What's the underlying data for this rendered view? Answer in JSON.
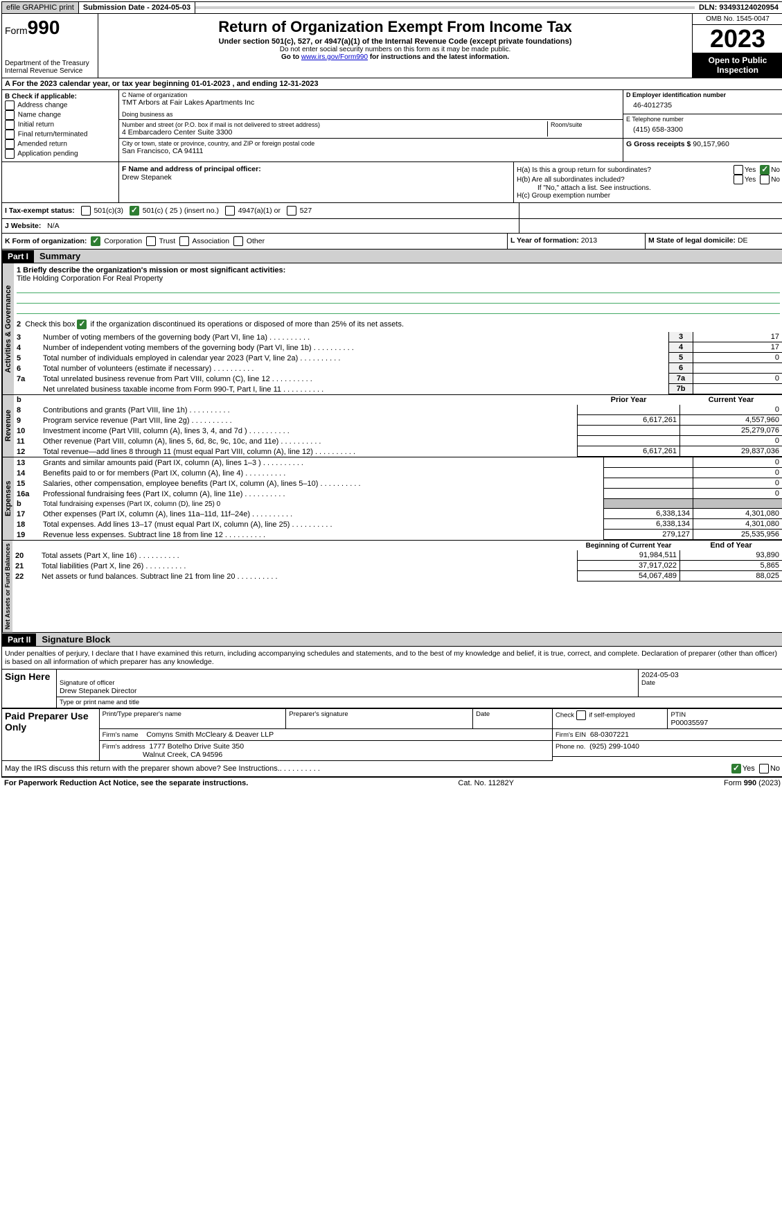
{
  "topbar": {
    "efile": "efile GRAPHIC print",
    "submission_label": "Submission Date - ",
    "submission_date": "2024-05-03",
    "dln_label": "DLN: ",
    "dln": "93493124020954"
  },
  "header": {
    "form_prefix": "Form",
    "form_number": "990",
    "dept": "Department of the Treasury",
    "irs": "Internal Revenue Service",
    "title": "Return of Organization Exempt From Income Tax",
    "subtitle": "Under section 501(c), 527, or 4947(a)(1) of the Internal Revenue Code (except private foundations)",
    "note1": "Do not enter social security numbers on this form as it may be made public.",
    "note2_pre": "Go to ",
    "note2_link": "www.irs.gov/Form990",
    "note2_post": " for instructions and the latest information.",
    "omb": "OMB No. 1545-0047",
    "year": "2023",
    "open": "Open to Public Inspection"
  },
  "line_a": {
    "text_pre": "A For the 2023 calendar year, or tax year beginning ",
    "begin": "01-01-2023",
    "mid": ", and ending ",
    "end": "12-31-2023"
  },
  "box_b": {
    "label": "B Check if applicable:",
    "opts": [
      "Address change",
      "Name change",
      "Initial return",
      "Final return/terminated",
      "Amended return",
      "Application pending"
    ]
  },
  "box_c": {
    "name_label": "C Name of organization",
    "name": "TMT Arbors at Fair Lakes Apartments Inc",
    "dba_label": "Doing business as",
    "street_label": "Number and street (or P.O. box if mail is not delivered to street address)",
    "room_label": "Room/suite",
    "street": "4 Embarcadero Center Suite 3300",
    "city_label": "City or town, state or province, country, and ZIP or foreign postal code",
    "city": "San Francisco, CA  94111"
  },
  "box_d": {
    "label": "D Employer identification number",
    "value": "46-4012735"
  },
  "box_e": {
    "label": "E Telephone number",
    "value": "(415) 658-3300"
  },
  "box_g": {
    "label": "G Gross receipts $ ",
    "value": "90,157,960"
  },
  "box_f": {
    "label": "F  Name and address of principal officer:",
    "name": "Drew Stepanek"
  },
  "box_h": {
    "a": "H(a)  Is this a group return for subordinates?",
    "b": "H(b)  Are all subordinates included?",
    "b_note": "If \"No,\" attach a list. See instructions.",
    "c": "H(c)  Group exemption number"
  },
  "box_i": {
    "label": "I   Tax-exempt status:",
    "o1": "501(c)(3)",
    "o2": "501(c) ( 25 ) (insert no.)",
    "o3": "4947(a)(1) or",
    "o4": "527"
  },
  "box_j": {
    "label": "J   Website:",
    "value": "N/A"
  },
  "box_k": {
    "label": "K Form of organization:",
    "opts": [
      "Corporation",
      "Trust",
      "Association",
      "Other"
    ]
  },
  "box_l": {
    "label": "L Year of formation: ",
    "value": "2013"
  },
  "box_m": {
    "label": "M State of legal domicile: ",
    "value": "DE"
  },
  "part1": {
    "hdr": "Part I",
    "title": "Summary",
    "line1_label": "1   Briefly describe the organization's mission or most significant activities:",
    "mission": "Title Holding Corporation For Real Property",
    "line2": "2   Check this box        if the organization discontinued its operations or disposed of more than 25% of its net assets.",
    "rows_gov": [
      {
        "n": "3",
        "desc": "Number of voting members of the governing body (Part VI, line 1a)",
        "ln": "3",
        "v": "17"
      },
      {
        "n": "4",
        "desc": "Number of independent voting members of the governing body (Part VI, line 1b)",
        "ln": "4",
        "v": "17"
      },
      {
        "n": "5",
        "desc": "Total number of individuals employed in calendar year 2023 (Part V, line 2a)",
        "ln": "5",
        "v": "0"
      },
      {
        "n": "6",
        "desc": "Total number of volunteers (estimate if necessary)",
        "ln": "6",
        "v": ""
      },
      {
        "n": "7a",
        "desc": "Total unrelated business revenue from Part VIII, column (C), line 12",
        "ln": "7a",
        "v": "0"
      },
      {
        "n": "",
        "desc": "Net unrelated business taxable income from Form 990-T, Part I, line 11",
        "ln": "7b",
        "v": ""
      }
    ],
    "col_hdrs": {
      "b": "b",
      "py": "Prior Year",
      "cy": "Current Year"
    },
    "rows_rev": [
      {
        "n": "8",
        "desc": "Contributions and grants (Part VIII, line 1h)",
        "py": "",
        "cy": "0"
      },
      {
        "n": "9",
        "desc": "Program service revenue (Part VIII, line 2g)",
        "py": "6,617,261",
        "cy": "4,557,960"
      },
      {
        "n": "10",
        "desc": "Investment income (Part VIII, column (A), lines 3, 4, and 7d )",
        "py": "",
        "cy": "25,279,076"
      },
      {
        "n": "11",
        "desc": "Other revenue (Part VIII, column (A), lines 5, 6d, 8c, 9c, 10c, and 11e)",
        "py": "",
        "cy": "0"
      },
      {
        "n": "12",
        "desc": "Total revenue—add lines 8 through 11 (must equal Part VIII, column (A), line 12)",
        "py": "6,617,261",
        "cy": "29,837,036"
      }
    ],
    "rows_exp": [
      {
        "n": "13",
        "desc": "Grants and similar amounts paid (Part IX, column (A), lines 1–3 )",
        "py": "",
        "cy": "0"
      },
      {
        "n": "14",
        "desc": "Benefits paid to or for members (Part IX, column (A), line 4)",
        "py": "",
        "cy": "0"
      },
      {
        "n": "15",
        "desc": "Salaries, other compensation, employee benefits (Part IX, column (A), lines 5–10)",
        "py": "",
        "cy": "0"
      },
      {
        "n": "16a",
        "desc": "Professional fundraising fees (Part IX, column (A), line 11e)",
        "py": "",
        "cy": "0"
      },
      {
        "n": "b",
        "desc": "Total fundraising expenses (Part IX, column (D), line 25) 0",
        "py": "GREY",
        "cy": "GREY"
      },
      {
        "n": "17",
        "desc": "Other expenses (Part IX, column (A), lines 11a–11d, 11f–24e)",
        "py": "6,338,134",
        "cy": "4,301,080"
      },
      {
        "n": "18",
        "desc": "Total expenses. Add lines 13–17 (must equal Part IX, column (A), line 25)",
        "py": "6,338,134",
        "cy": "4,301,080"
      },
      {
        "n": "19",
        "desc": "Revenue less expenses. Subtract line 18 from line 12",
        "py": "279,127",
        "cy": "25,535,956"
      }
    ],
    "net_hdrs": {
      "b": "Beginning of Current Year",
      "e": "End of Year"
    },
    "rows_net": [
      {
        "n": "20",
        "desc": "Total assets (Part X, line 16)",
        "py": "91,984,511",
        "cy": "93,890"
      },
      {
        "n": "21",
        "desc": "Total liabilities (Part X, line 26)",
        "py": "37,917,022",
        "cy": "5,865"
      },
      {
        "n": "22",
        "desc": "Net assets or fund balances. Subtract line 21 from line 20",
        "py": "54,067,489",
        "cy": "88,025"
      }
    ],
    "vlabels": {
      "gov": "Activities & Governance",
      "rev": "Revenue",
      "exp": "Expenses",
      "net": "Net Assets or Fund Balances"
    }
  },
  "part2": {
    "hdr": "Part II",
    "title": "Signature Block",
    "decl": "Under penalties of perjury, I declare that I have examined this return, including accompanying schedules and statements, and to the best of my knowledge and belief, it is true, correct, and complete. Declaration of preparer (other than officer) is based on all information of which preparer has any knowledge.",
    "sign_here": "Sign Here",
    "sig_date": "2024-05-03",
    "sig_officer_lbl": "Signature of officer",
    "sig_officer": "Drew Stepanek  Director",
    "sig_type_lbl": "Type or print name and title",
    "date_lbl": "Date",
    "paid": "Paid Preparer Use Only",
    "prep_name_lbl": "Print/Type preparer's name",
    "prep_sig_lbl": "Preparer's signature",
    "prep_date_lbl": "Date",
    "check_self": "Check         if self-employed",
    "ptin_lbl": "PTIN",
    "ptin": "P00035597",
    "firm_name_lbl": "Firm's name",
    "firm_name": "Comyns Smith McCleary & Deaver LLP",
    "firm_ein_lbl": "Firm's EIN",
    "firm_ein": "68-0307221",
    "firm_addr_lbl": "Firm's address",
    "firm_addr1": "1777 Botelho Drive Suite 350",
    "firm_addr2": "Walnut Creek, CA  94596",
    "phone_lbl": "Phone no.",
    "phone": "(925) 299-1040",
    "discuss": "May the IRS discuss this return with the preparer shown above? See Instructions.",
    "yes": "Yes",
    "no": "No"
  },
  "footer": {
    "left": "For Paperwork Reduction Act Notice, see the separate instructions.",
    "mid": "Cat. No. 11282Y",
    "right": "Form 990 (2023)"
  }
}
